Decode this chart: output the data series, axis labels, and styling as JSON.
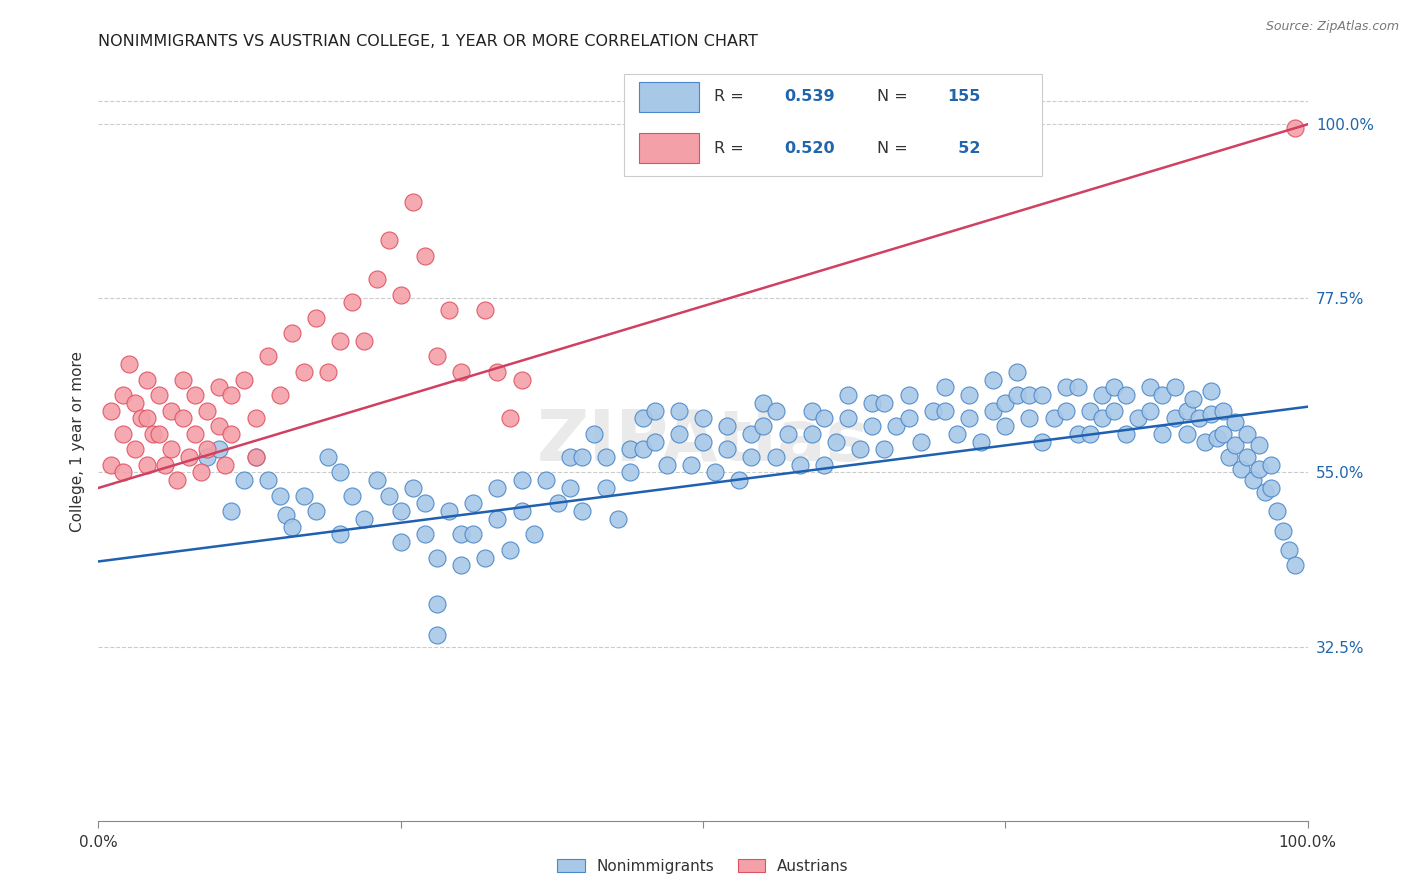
{
  "title": "NONIMMIGRANTS VS AUSTRIAN COLLEGE, 1 YEAR OR MORE CORRELATION CHART",
  "source": "Source: ZipAtlas.com",
  "ylabel": "College, 1 year or more",
  "ytick_labels": [
    "100.0%",
    "77.5%",
    "55.0%",
    "32.5%"
  ],
  "ytick_values": [
    1.0,
    0.775,
    0.55,
    0.325
  ],
  "xlim": [
    0.0,
    1.0
  ],
  "ylim": [
    0.1,
    1.08
  ],
  "legend_labels": [
    "Nonimmigrants",
    "Austrians"
  ],
  "nonimmigrants_R": "0.539",
  "nonimmigrants_N": "155",
  "austrians_R": "0.520",
  "austrians_N": "52",
  "blue_color": "#a8c8e8",
  "pink_color": "#f4a0a8",
  "blue_edge_color": "#4a86c8",
  "pink_edge_color": "#e05060",
  "blue_line_color": "#2060b0",
  "pink_line_color": "#d04060",
  "blue_regline": [
    0.0,
    1.0,
    0.435,
    0.635
  ],
  "pink_regline": [
    0.0,
    1.0,
    0.53,
    1.0
  ],
  "watermark": "ZIPAtlas",
  "background_color": "#ffffff",
  "grid_color": "#cccccc",
  "blue_scatter": [
    [
      0.09,
      0.57
    ],
    [
      0.1,
      0.58
    ],
    [
      0.11,
      0.5
    ],
    [
      0.12,
      0.54
    ],
    [
      0.13,
      0.57
    ],
    [
      0.14,
      0.54
    ],
    [
      0.15,
      0.52
    ],
    [
      0.155,
      0.495
    ],
    [
      0.16,
      0.48
    ],
    [
      0.17,
      0.52
    ],
    [
      0.18,
      0.5
    ],
    [
      0.19,
      0.57
    ],
    [
      0.2,
      0.55
    ],
    [
      0.2,
      0.47
    ],
    [
      0.21,
      0.52
    ],
    [
      0.22,
      0.49
    ],
    [
      0.23,
      0.54
    ],
    [
      0.24,
      0.52
    ],
    [
      0.25,
      0.5
    ],
    [
      0.25,
      0.46
    ],
    [
      0.26,
      0.53
    ],
    [
      0.27,
      0.51
    ],
    [
      0.27,
      0.47
    ],
    [
      0.28,
      0.44
    ],
    [
      0.28,
      0.38
    ],
    [
      0.28,
      0.34
    ],
    [
      0.29,
      0.5
    ],
    [
      0.3,
      0.47
    ],
    [
      0.3,
      0.43
    ],
    [
      0.31,
      0.51
    ],
    [
      0.31,
      0.47
    ],
    [
      0.32,
      0.44
    ],
    [
      0.33,
      0.53
    ],
    [
      0.33,
      0.49
    ],
    [
      0.34,
      0.45
    ],
    [
      0.35,
      0.54
    ],
    [
      0.35,
      0.5
    ],
    [
      0.36,
      0.47
    ],
    [
      0.37,
      0.54
    ],
    [
      0.38,
      0.51
    ],
    [
      0.39,
      0.57
    ],
    [
      0.39,
      0.53
    ],
    [
      0.4,
      0.57
    ],
    [
      0.4,
      0.5
    ],
    [
      0.41,
      0.6
    ],
    [
      0.42,
      0.57
    ],
    [
      0.42,
      0.53
    ],
    [
      0.43,
      0.49
    ],
    [
      0.44,
      0.58
    ],
    [
      0.44,
      0.55
    ],
    [
      0.45,
      0.62
    ],
    [
      0.45,
      0.58
    ],
    [
      0.46,
      0.63
    ],
    [
      0.46,
      0.59
    ],
    [
      0.47,
      0.56
    ],
    [
      0.48,
      0.63
    ],
    [
      0.48,
      0.6
    ],
    [
      0.49,
      0.56
    ],
    [
      0.5,
      0.62
    ],
    [
      0.5,
      0.59
    ],
    [
      0.51,
      0.55
    ],
    [
      0.52,
      0.61
    ],
    [
      0.52,
      0.58
    ],
    [
      0.53,
      0.54
    ],
    [
      0.54,
      0.6
    ],
    [
      0.54,
      0.57
    ],
    [
      0.55,
      0.64
    ],
    [
      0.55,
      0.61
    ],
    [
      0.56,
      0.57
    ],
    [
      0.56,
      0.63
    ],
    [
      0.57,
      0.6
    ],
    [
      0.58,
      0.56
    ],
    [
      0.59,
      0.63
    ],
    [
      0.59,
      0.6
    ],
    [
      0.6,
      0.56
    ],
    [
      0.6,
      0.62
    ],
    [
      0.61,
      0.59
    ],
    [
      0.62,
      0.65
    ],
    [
      0.62,
      0.62
    ],
    [
      0.63,
      0.58
    ],
    [
      0.64,
      0.64
    ],
    [
      0.64,
      0.61
    ],
    [
      0.65,
      0.58
    ],
    [
      0.65,
      0.64
    ],
    [
      0.66,
      0.61
    ],
    [
      0.67,
      0.65
    ],
    [
      0.67,
      0.62
    ],
    [
      0.68,
      0.59
    ],
    [
      0.69,
      0.63
    ],
    [
      0.7,
      0.66
    ],
    [
      0.7,
      0.63
    ],
    [
      0.71,
      0.6
    ],
    [
      0.72,
      0.65
    ],
    [
      0.72,
      0.62
    ],
    [
      0.73,
      0.59
    ],
    [
      0.74,
      0.63
    ],
    [
      0.74,
      0.67
    ],
    [
      0.75,
      0.64
    ],
    [
      0.75,
      0.61
    ],
    [
      0.76,
      0.65
    ],
    [
      0.76,
      0.68
    ],
    [
      0.77,
      0.65
    ],
    [
      0.77,
      0.62
    ],
    [
      0.78,
      0.59
    ],
    [
      0.78,
      0.65
    ],
    [
      0.79,
      0.62
    ],
    [
      0.8,
      0.66
    ],
    [
      0.8,
      0.63
    ],
    [
      0.81,
      0.6
    ],
    [
      0.81,
      0.66
    ],
    [
      0.82,
      0.63
    ],
    [
      0.82,
      0.6
    ],
    [
      0.83,
      0.65
    ],
    [
      0.83,
      0.62
    ],
    [
      0.84,
      0.66
    ],
    [
      0.84,
      0.63
    ],
    [
      0.85,
      0.6
    ],
    [
      0.85,
      0.65
    ],
    [
      0.86,
      0.62
    ],
    [
      0.87,
      0.66
    ],
    [
      0.87,
      0.63
    ],
    [
      0.88,
      0.6
    ],
    [
      0.88,
      0.65
    ],
    [
      0.89,
      0.62
    ],
    [
      0.89,
      0.66
    ],
    [
      0.9,
      0.63
    ],
    [
      0.9,
      0.6
    ],
    [
      0.905,
      0.645
    ],
    [
      0.91,
      0.62
    ],
    [
      0.915,
      0.59
    ],
    [
      0.92,
      0.655
    ],
    [
      0.92,
      0.625
    ],
    [
      0.925,
      0.595
    ],
    [
      0.93,
      0.63
    ],
    [
      0.93,
      0.6
    ],
    [
      0.935,
      0.57
    ],
    [
      0.94,
      0.615
    ],
    [
      0.94,
      0.585
    ],
    [
      0.945,
      0.555
    ],
    [
      0.95,
      0.6
    ],
    [
      0.95,
      0.57
    ],
    [
      0.955,
      0.54
    ],
    [
      0.96,
      0.585
    ],
    [
      0.96,
      0.555
    ],
    [
      0.965,
      0.525
    ],
    [
      0.97,
      0.56
    ],
    [
      0.97,
      0.53
    ],
    [
      0.975,
      0.5
    ],
    [
      0.98,
      0.475
    ],
    [
      0.985,
      0.45
    ],
    [
      0.99,
      0.43
    ]
  ],
  "pink_scatter": [
    [
      0.01,
      0.63
    ],
    [
      0.01,
      0.56
    ],
    [
      0.02,
      0.65
    ],
    [
      0.02,
      0.6
    ],
    [
      0.02,
      0.55
    ],
    [
      0.025,
      0.69
    ],
    [
      0.03,
      0.64
    ],
    [
      0.03,
      0.58
    ],
    [
      0.035,
      0.62
    ],
    [
      0.04,
      0.67
    ],
    [
      0.04,
      0.62
    ],
    [
      0.04,
      0.56
    ],
    [
      0.045,
      0.6
    ],
    [
      0.05,
      0.65
    ],
    [
      0.05,
      0.6
    ],
    [
      0.055,
      0.56
    ],
    [
      0.06,
      0.63
    ],
    [
      0.06,
      0.58
    ],
    [
      0.065,
      0.54
    ],
    [
      0.07,
      0.67
    ],
    [
      0.07,
      0.62
    ],
    [
      0.075,
      0.57
    ],
    [
      0.08,
      0.65
    ],
    [
      0.08,
      0.6
    ],
    [
      0.085,
      0.55
    ],
    [
      0.09,
      0.63
    ],
    [
      0.09,
      0.58
    ],
    [
      0.1,
      0.66
    ],
    [
      0.1,
      0.61
    ],
    [
      0.105,
      0.56
    ],
    [
      0.11,
      0.65
    ],
    [
      0.11,
      0.6
    ],
    [
      0.12,
      0.67
    ],
    [
      0.13,
      0.62
    ],
    [
      0.13,
      0.57
    ],
    [
      0.14,
      0.7
    ],
    [
      0.15,
      0.65
    ],
    [
      0.16,
      0.73
    ],
    [
      0.17,
      0.68
    ],
    [
      0.18,
      0.75
    ],
    [
      0.19,
      0.68
    ],
    [
      0.2,
      0.72
    ],
    [
      0.21,
      0.77
    ],
    [
      0.22,
      0.72
    ],
    [
      0.23,
      0.8
    ],
    [
      0.24,
      0.85
    ],
    [
      0.25,
      0.78
    ],
    [
      0.26,
      0.9
    ],
    [
      0.27,
      0.83
    ],
    [
      0.28,
      0.7
    ],
    [
      0.29,
      0.76
    ],
    [
      0.3,
      0.68
    ],
    [
      0.32,
      0.76
    ],
    [
      0.33,
      0.68
    ],
    [
      0.34,
      0.62
    ],
    [
      0.35,
      0.67
    ],
    [
      0.99,
      0.995
    ]
  ]
}
